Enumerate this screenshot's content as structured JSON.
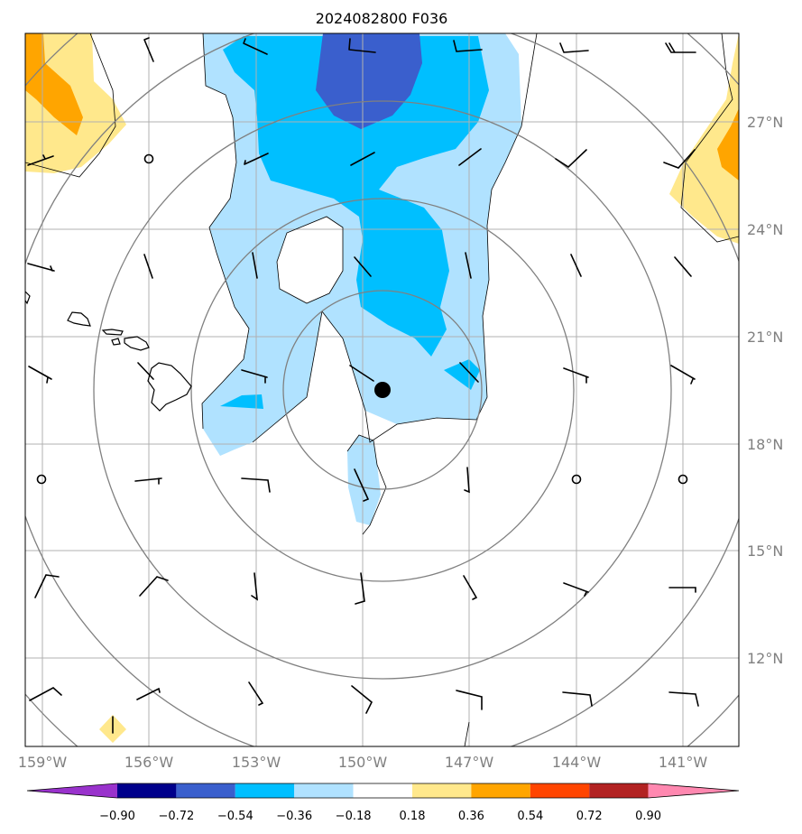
{
  "title": "2024082800 F036",
  "lon_ticks": [
    "159°W",
    "156°W",
    "153°W",
    "150°W",
    "147°W",
    "144°W",
    "141°W"
  ],
  "lat_ticks": [
    "27°N",
    "24°N",
    "21°N",
    "18°N",
    "15°N",
    "12°N"
  ],
  "colorbar": {
    "labels": [
      "−0.90",
      "−0.72",
      "−0.54",
      "−0.36",
      "−0.18",
      "0.18",
      "0.36",
      "0.54",
      "0.72",
      "0.90"
    ],
    "colors": [
      "#9932cc",
      "#00008b",
      "#3a5fcd",
      "#00bfff",
      "#b0e2ff",
      "#ffffff",
      "#ffe88c",
      "#ffa500",
      "#ff4500",
      "#b22222",
      "#ff88b0"
    ]
  },
  "map": {
    "extent": {
      "lon": [
        -159.5,
        -139.5
      ],
      "lat": [
        9.5,
        29.5
      ]
    },
    "storm_center": {
      "lon": -149.5,
      "lat": 19.5
    },
    "range_ring_count": 5
  }
}
